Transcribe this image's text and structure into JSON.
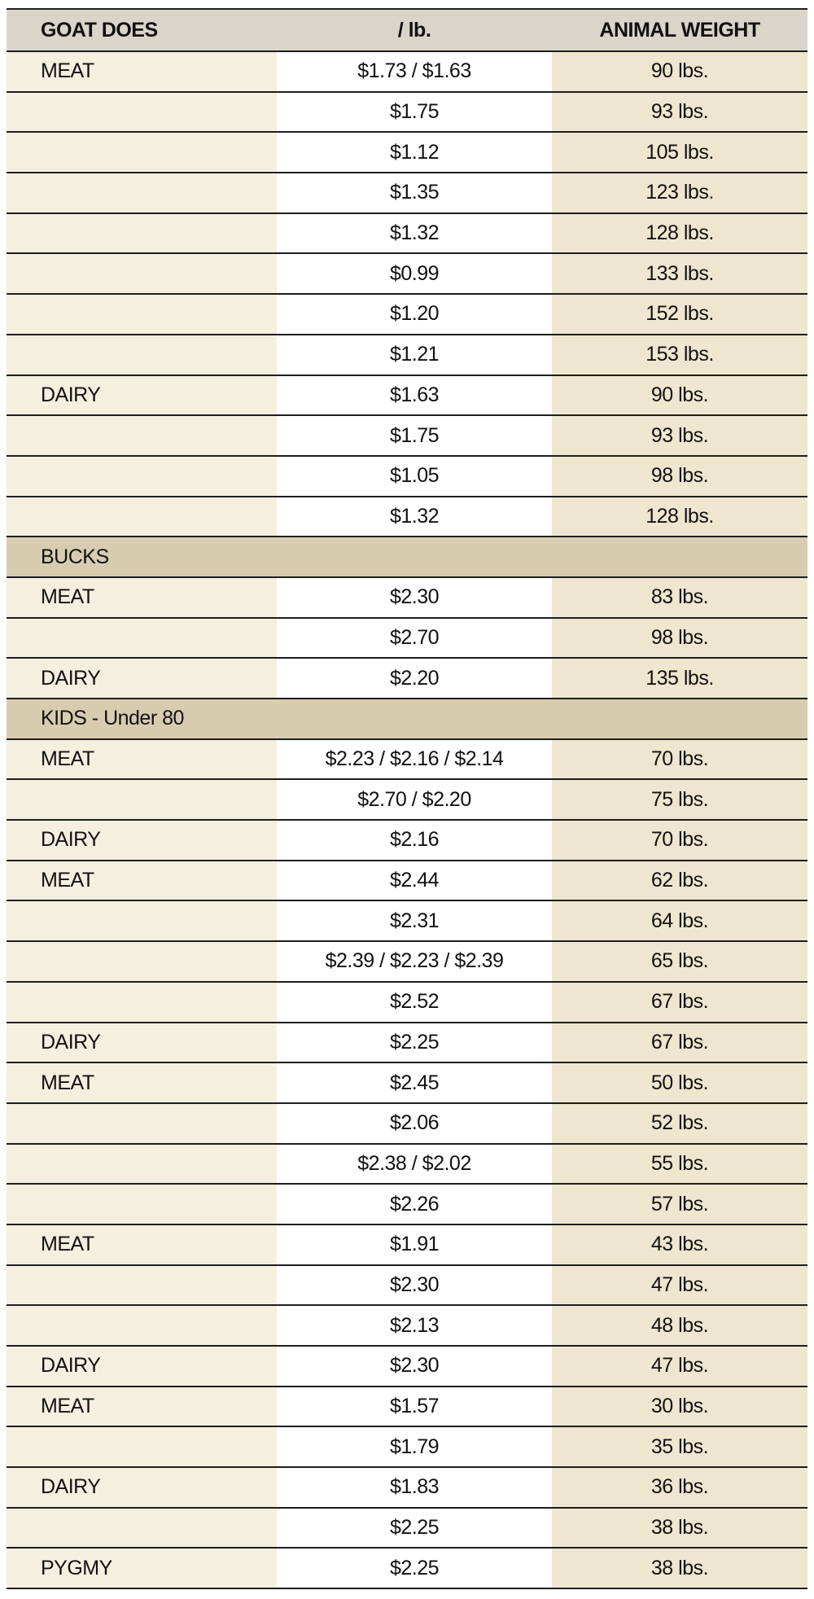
{
  "headers": [
    "GOAT DOES",
    "/ lb.",
    "ANIMAL WEIGHT"
  ],
  "rows": [
    {
      "type": "data",
      "category": "MEAT",
      "price": "$1.73 / $1.63",
      "weight": "90 lbs."
    },
    {
      "type": "data",
      "category": "",
      "price": "$1.75",
      "weight": "93 lbs."
    },
    {
      "type": "data",
      "category": "",
      "price": "$1.12",
      "weight": "105 lbs."
    },
    {
      "type": "data",
      "category": "",
      "price": "$1.35",
      "weight": "123 lbs."
    },
    {
      "type": "data",
      "category": "",
      "price": "$1.32",
      "weight": "128 lbs."
    },
    {
      "type": "data",
      "category": "",
      "price": "$0.99",
      "weight": "133 lbs."
    },
    {
      "type": "data",
      "category": "",
      "price": "$1.20",
      "weight": "152 lbs."
    },
    {
      "type": "data",
      "category": "",
      "price": "$1.21",
      "weight": "153 lbs."
    },
    {
      "type": "data",
      "category": "DAIRY",
      "price": "$1.63",
      "weight": "90 lbs."
    },
    {
      "type": "data",
      "category": "",
      "price": "$1.75",
      "weight": "93 lbs."
    },
    {
      "type": "data",
      "category": "",
      "price": "$1.05",
      "weight": "98 lbs."
    },
    {
      "type": "data",
      "category": "",
      "price": "$1.32",
      "weight": "128 lbs."
    },
    {
      "type": "section",
      "category": "BUCKS"
    },
    {
      "type": "data",
      "category": "MEAT",
      "price": "$2.30",
      "weight": "83 lbs."
    },
    {
      "type": "data",
      "category": "",
      "price": "$2.70",
      "weight": "98 lbs."
    },
    {
      "type": "data",
      "category": "DAIRY",
      "price": "$2.20",
      "weight": "135 lbs."
    },
    {
      "type": "section",
      "category": "KIDS - Under 80"
    },
    {
      "type": "data",
      "category": "MEAT",
      "price": "$2.23 / $2.16 / $2.14",
      "weight": "70 lbs."
    },
    {
      "type": "data",
      "category": "",
      "price": "$2.70 / $2.20",
      "weight": "75 lbs."
    },
    {
      "type": "data",
      "category": "DAIRY",
      "price": "$2.16",
      "weight": "70 lbs."
    },
    {
      "type": "data",
      "category": "MEAT",
      "price": "$2.44",
      "weight": "62 lbs."
    },
    {
      "type": "data",
      "category": "",
      "price": "$2.31",
      "weight": "64 lbs."
    },
    {
      "type": "data",
      "category": "",
      "price": "$2.39 / $2.23 / $2.39",
      "weight": "65 lbs."
    },
    {
      "type": "data",
      "category": "",
      "price": "$2.52",
      "weight": "67 lbs."
    },
    {
      "type": "data",
      "category": "DAIRY",
      "price": "$2.25",
      "weight": "67 lbs."
    },
    {
      "type": "data",
      "category": "MEAT",
      "price": "$2.45",
      "weight": "50 lbs."
    },
    {
      "type": "data",
      "category": "",
      "price": "$2.06",
      "weight": "52 lbs."
    },
    {
      "type": "data",
      "category": "",
      "price": "$2.38 / $2.02",
      "weight": "55 lbs."
    },
    {
      "type": "data",
      "category": "",
      "price": "$2.26",
      "weight": "57 lbs."
    },
    {
      "type": "data",
      "category": "MEAT",
      "price": "$1.91",
      "weight": "43 lbs."
    },
    {
      "type": "data",
      "category": "",
      "price": "$2.30",
      "weight": "47 lbs."
    },
    {
      "type": "data",
      "category": "",
      "price": "$2.13",
      "weight": "48 lbs."
    },
    {
      "type": "data",
      "category": "DAIRY",
      "price": "$2.30",
      "weight": "47 lbs."
    },
    {
      "type": "data",
      "category": "MEAT",
      "price": "$1.57",
      "weight": "30 lbs."
    },
    {
      "type": "data",
      "category": "",
      "price": "$1.79",
      "weight": "35 lbs."
    },
    {
      "type": "data",
      "category": "DAIRY",
      "price": "$1.83",
      "weight": "36 lbs."
    },
    {
      "type": "data",
      "category": "",
      "price": "$2.25",
      "weight": "38 lbs."
    },
    {
      "type": "data",
      "category": "PYGMY",
      "price": "$2.25",
      "weight": "38 lbs."
    }
  ]
}
